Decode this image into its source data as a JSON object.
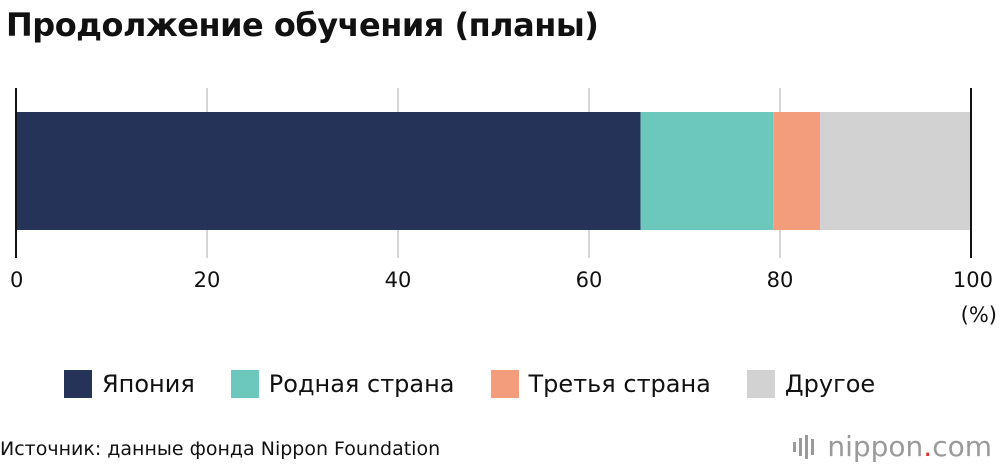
{
  "title": "Продолжение обучения (планы)",
  "source": "Источник: данные фонда Nippon Foundation",
  "brand": {
    "name": "nippon",
    "dot": ".",
    "suffix": "com"
  },
  "colors": {
    "Япония": "#263359",
    "Родная страна": "#6cc8bd",
    "Третья страна": "#f39d7c",
    "Другое": "#d2d2d2",
    "grid": "#c8c8c8",
    "axis": "#111111"
  },
  "chart_data": {
    "type": "bar",
    "orientation": "horizontal",
    "stacked": true,
    "xlim": [
      0,
      100
    ],
    "x_ticks": [
      0,
      20,
      40,
      60,
      80,
      100
    ],
    "unit_label": "(%)",
    "grid": true,
    "legend_position": "bottom",
    "series": [
      {
        "name": "Япония",
        "value": 65.4
      },
      {
        "name": "Родная страна",
        "value": 13.9
      },
      {
        "name": "Третья страна",
        "value": 4.9
      },
      {
        "name": "Другое",
        "value": 15.8
      }
    ]
  }
}
